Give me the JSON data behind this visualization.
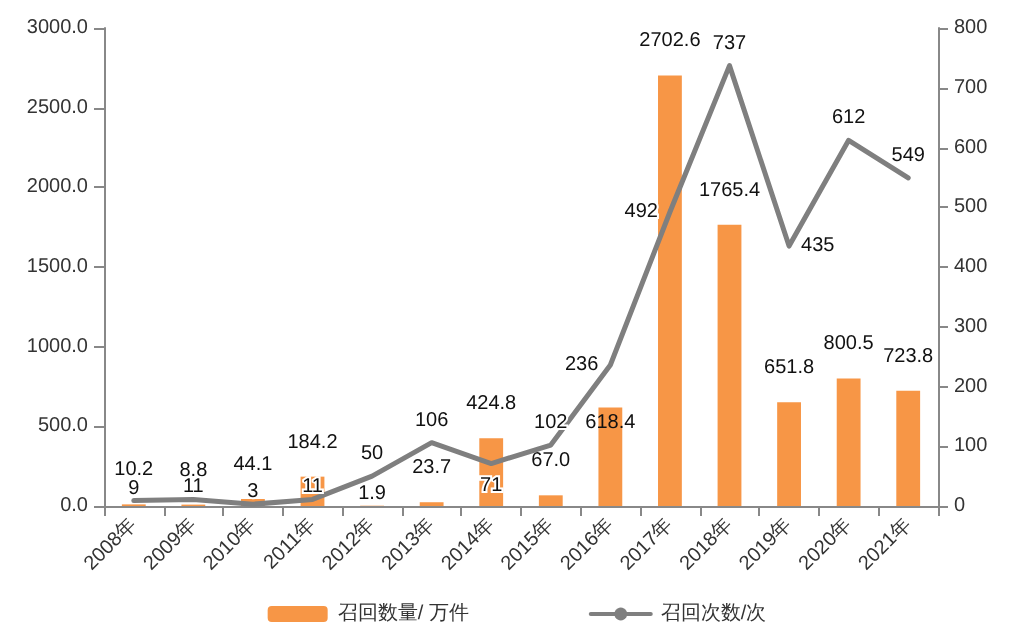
{
  "chart_data": {
    "type": "bar",
    "categories": [
      "2008年",
      "2009年",
      "2010年",
      "2011年",
      "2012年",
      "2013年",
      "2014年",
      "2015年",
      "2016年",
      "2017年",
      "2018年",
      "2019年",
      "2020年",
      "2021年"
    ],
    "series": [
      {
        "name": "召回数量/ 万件",
        "color": "#f79646",
        "values": [
          10.2,
          8.8,
          44.1,
          184.2,
          1.9,
          23.7,
          424.8,
          67.0,
          618.4,
          2702.6,
          1765.4,
          651.8,
          800.5,
          723.8
        ],
        "value_labels": [
          "10.2",
          "8.8",
          "44.1",
          "184.2",
          "1.9",
          "23.7",
          "424.8",
          "67.0",
          "618.4",
          "2702.6",
          "1765.4",
          "651.8",
          "800.5",
          "723.8"
        ]
      },
      {
        "name": "召回次数/次",
        "type": "line",
        "axis": "y2",
        "color": "#7f7f7f",
        "values": [
          9,
          11,
          3,
          11,
          50,
          106,
          71,
          102,
          236,
          492,
          737,
          435,
          612,
          549
        ],
        "value_labels": [
          "9",
          "11",
          "3",
          "11",
          "50",
          "106",
          "71",
          "102",
          "236",
          "492",
          "737",
          "435",
          "612",
          "549"
        ]
      }
    ],
    "ylim": [
      0,
      3000
    ],
    "yticks": [
      {
        "value": 0,
        "label": "0.0"
      },
      {
        "value": 500,
        "label": "500.0"
      },
      {
        "value": 1000,
        "label": "1000.0"
      },
      {
        "value": 1500,
        "label": "1500.0"
      },
      {
        "value": 2000,
        "label": "2000.0"
      },
      {
        "value": 2500,
        "label": "2500.0"
      },
      {
        "value": 3000,
        "label": "3000.0"
      }
    ],
    "y2lim": [
      0,
      800
    ],
    "y2ticks": [
      0,
      100,
      200,
      300,
      400,
      500,
      600,
      700,
      800
    ],
    "grid": false,
    "legend": "bottom",
    "marker": "none",
    "line_style": "solid"
  }
}
